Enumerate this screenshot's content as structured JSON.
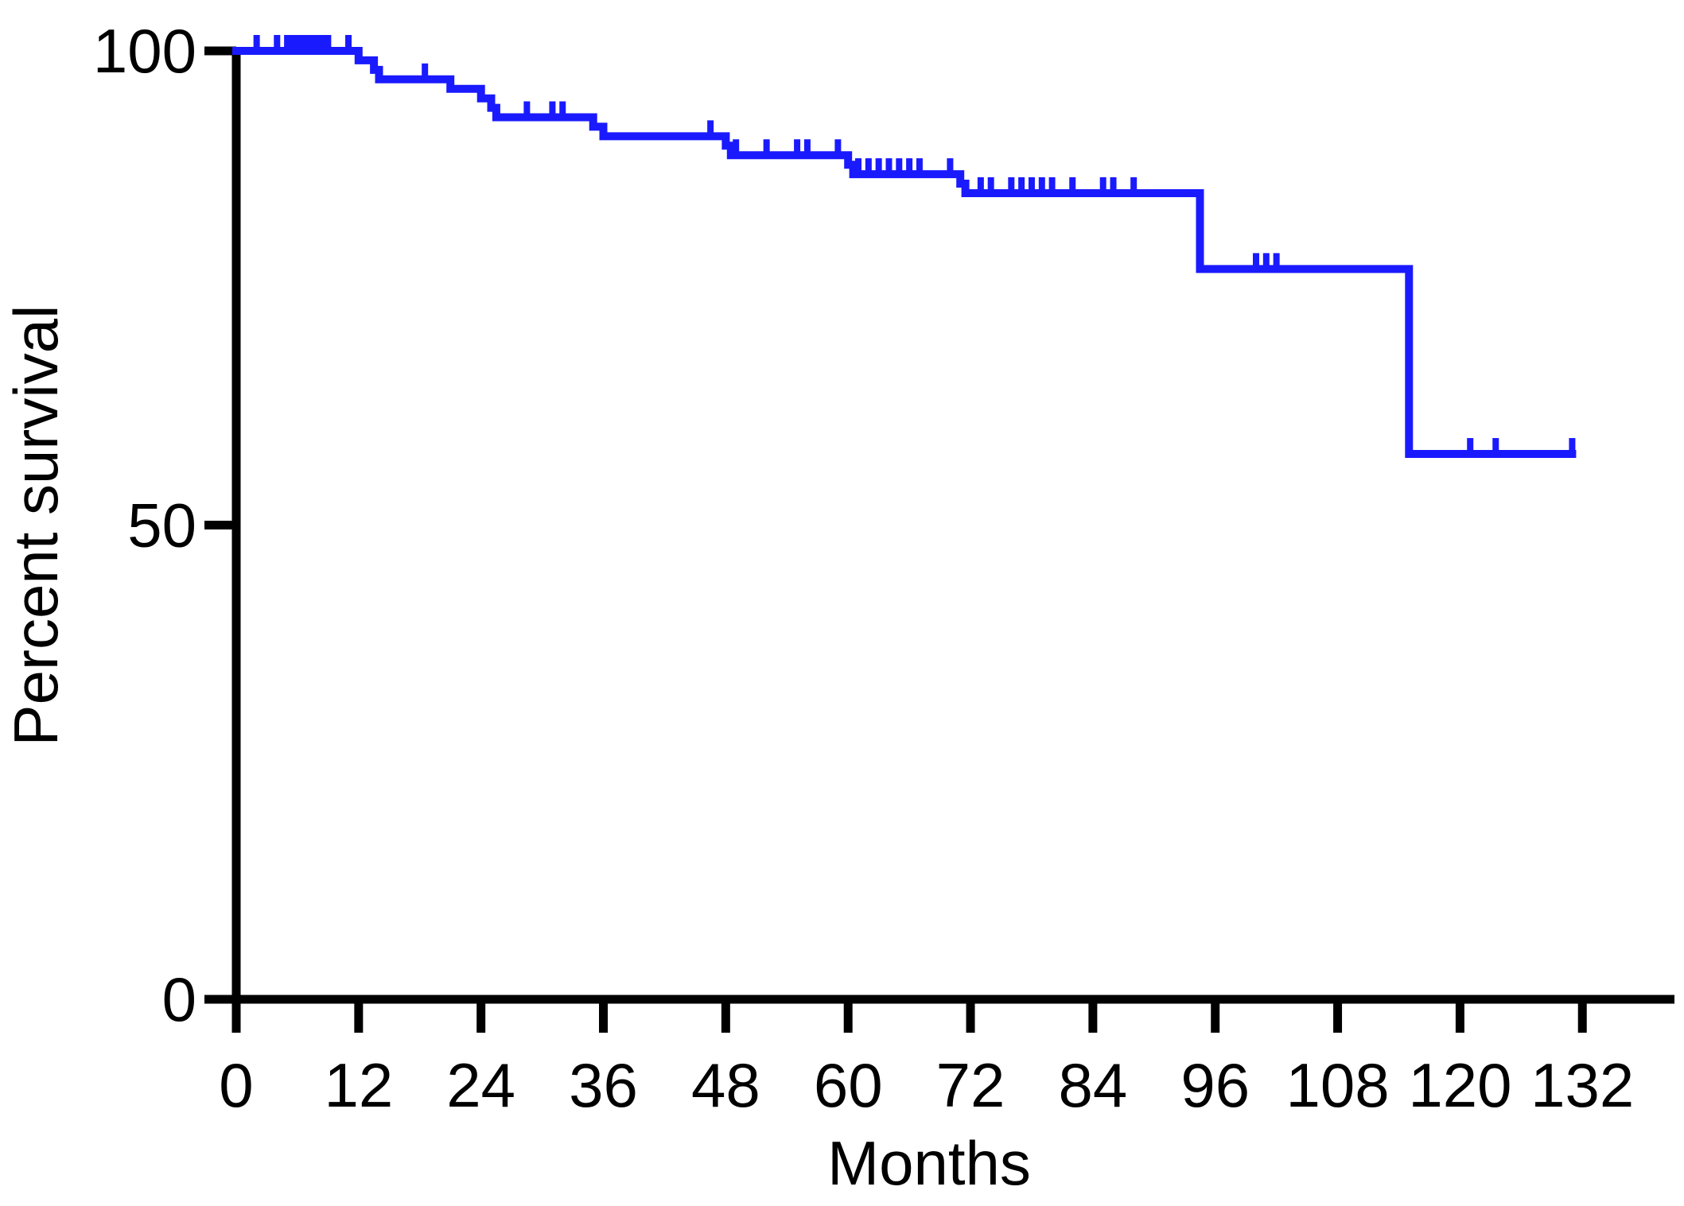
{
  "chart_data": {
    "type": "line",
    "subtype": "kaplan-meier-step",
    "title": "",
    "xlabel": "Months",
    "ylabel": "Percent survival",
    "xlim": [
      0,
      140
    ],
    "ylim": [
      0,
      100
    ],
    "xticks": [
      0,
      12,
      24,
      36,
      48,
      60,
      72,
      84,
      96,
      108,
      120,
      132
    ],
    "yticks": [
      0,
      50,
      100
    ],
    "grid": false,
    "legend": "none",
    "series": [
      {
        "color": "#1a1aff",
        "steps": [
          [
            0,
            100
          ],
          [
            12,
            99
          ],
          [
            13.5,
            98
          ],
          [
            14,
            97
          ],
          [
            21,
            96
          ],
          [
            24,
            95
          ],
          [
            25,
            94
          ],
          [
            25.5,
            93
          ],
          [
            35,
            92
          ],
          [
            36,
            91
          ],
          [
            48,
            90
          ],
          [
            48.5,
            89
          ],
          [
            60,
            88
          ],
          [
            60.5,
            87
          ],
          [
            71,
            86
          ],
          [
            71.5,
            85
          ],
          [
            94.5,
            77
          ],
          [
            115,
            57.5
          ],
          [
            131,
            57.5
          ]
        ],
        "censored": [
          [
            2,
            100
          ],
          [
            4,
            100
          ],
          [
            5,
            100
          ],
          [
            5.5,
            100
          ],
          [
            6,
            100
          ],
          [
            6.5,
            100
          ],
          [
            7,
            100
          ],
          [
            7.5,
            100
          ],
          [
            8,
            100
          ],
          [
            8.5,
            100
          ],
          [
            9,
            100
          ],
          [
            11,
            100
          ],
          [
            18.5,
            97
          ],
          [
            28.5,
            93
          ],
          [
            31,
            93
          ],
          [
            32,
            93
          ],
          [
            46.5,
            91
          ],
          [
            49,
            89
          ],
          [
            52,
            89
          ],
          [
            55,
            89
          ],
          [
            56,
            89
          ],
          [
            59,
            89
          ],
          [
            61,
            87
          ],
          [
            62,
            87
          ],
          [
            63,
            87
          ],
          [
            64,
            87
          ],
          [
            65,
            87
          ],
          [
            66,
            87
          ],
          [
            67,
            87
          ],
          [
            70,
            87
          ],
          [
            73,
            85
          ],
          [
            74,
            85
          ],
          [
            76,
            85
          ],
          [
            77,
            85
          ],
          [
            78,
            85
          ],
          [
            79,
            85
          ],
          [
            80,
            85
          ],
          [
            82,
            85
          ],
          [
            85,
            85
          ],
          [
            86,
            85
          ],
          [
            88,
            85
          ],
          [
            100,
            77
          ],
          [
            101,
            77
          ],
          [
            102,
            77
          ],
          [
            121,
            57.5
          ],
          [
            123.5,
            57.5
          ],
          [
            131,
            57.5
          ]
        ]
      }
    ]
  }
}
